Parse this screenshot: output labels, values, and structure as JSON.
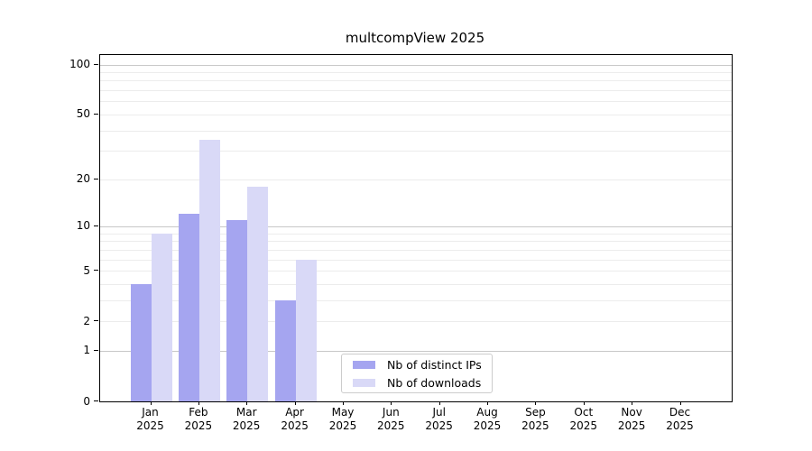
{
  "title": "multcompView 2025",
  "colors": {
    "distinct_ips": "#a5a5f0",
    "downloads": "#d9d9f7",
    "grid_major": "#c8c8c8",
    "grid_minor": "#ececec",
    "axis_frame": "#000000",
    "legend_border": "#cccccc",
    "text": "#000000"
  },
  "chart_data": {
    "type": "bar",
    "title": "multcompView 2025",
    "categories": [
      "Jan 2025",
      "Feb 2025",
      "Mar 2025",
      "Apr 2025",
      "May 2025",
      "Jun 2025",
      "Jul 2025",
      "Aug 2025",
      "Sep 2025",
      "Oct 2025",
      "Nov 2025",
      "Dec 2025"
    ],
    "series": [
      {
        "name": "Nb of distinct IPs",
        "color_key": "distinct_ips",
        "values": [
          4,
          12,
          11,
          3,
          0,
          0,
          0,
          0,
          0,
          0,
          0,
          0
        ]
      },
      {
        "name": "Nb of downloads",
        "color_key": "downloads",
        "values": [
          9,
          35,
          18,
          6,
          0,
          0,
          0,
          0,
          0,
          0,
          0,
          0
        ]
      }
    ],
    "xlabel": "",
    "ylabel": "",
    "yscale": "log1p",
    "ylim": [
      0,
      114
    ],
    "yticks": [
      0,
      1,
      2,
      5,
      10,
      20,
      50,
      100
    ],
    "grid_major_at": [
      1,
      10,
      100
    ],
    "grid_minor_at": [
      2,
      3,
      4,
      5,
      6,
      7,
      8,
      9,
      20,
      30,
      40,
      50,
      60,
      70,
      80,
      90
    ],
    "grid": true,
    "legend_position": "lower center inside"
  },
  "legend": {
    "items": [
      {
        "label": "Nb of distinct IPs",
        "color_key": "distinct_ips"
      },
      {
        "label": "Nb of downloads",
        "color_key": "downloads"
      }
    ]
  }
}
